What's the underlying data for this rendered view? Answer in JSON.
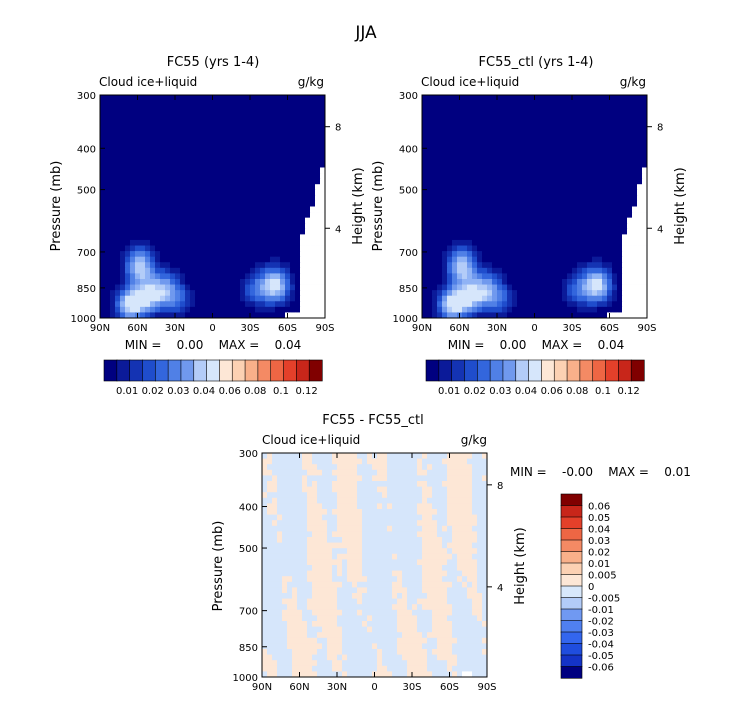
{
  "figure": {
    "title": "JJA"
  },
  "colors": {
    "abs_palette": [
      "#000080",
      "#0b1a99",
      "#1433b3",
      "#1f4dcc",
      "#3366dd",
      "#5080e6",
      "#7099ee",
      "#90b3f5",
      "#b3ccf8",
      "#d6e6fb",
      "#fde7d6",
      "#fcd1b3",
      "#f9b08a",
      "#f48a64",
      "#ee6644",
      "#e4402a",
      "#c8261a",
      "#a3140f",
      "#800000"
    ],
    "diff_palette": [
      "#000080",
      "#0a1ea6",
      "#1433c7",
      "#1f4dde",
      "#3366ee",
      "#5080f0",
      "#7099f2",
      "#90b3f5",
      "#b3ccf8",
      "#d8e8fb",
      "#fde7d6",
      "#fcd1b3",
      "#f9b08a",
      "#f48a64",
      "#ee6644",
      "#e4402a",
      "#c8261a",
      "#800000"
    ],
    "missing": "#ffffff"
  },
  "chart_data": [
    {
      "type": "heatmap",
      "title": "FC55 (yrs 1-4)",
      "left_label": "Cloud ice+liquid",
      "right_label": "g/kg",
      "ylabel": "Pressure (mb)",
      "y2label": "Height (km)",
      "x_ticks": [
        "90N",
        "60N",
        "30N",
        "0",
        "30S",
        "60S",
        "90S"
      ],
      "y_ticks": [
        "300",
        "400",
        "500",
        "700",
        "850",
        "1000"
      ],
      "y2_ticks": [
        "8",
        "4"
      ],
      "ylim": [
        1000,
        300
      ],
      "xlim": [
        90,
        -90
      ],
      "stats": "MIN =    0.00    MAX =    0.04",
      "colorbar_labels": [
        "0.01",
        "0.02",
        "0.03",
        "0.04",
        "0.06",
        "0.08",
        "0.1",
        "0.12"
      ],
      "features": [
        {
          "lat": 58,
          "p": 760,
          "value": 0.032
        },
        {
          "lat": 65,
          "p": 930,
          "value": 0.04
        },
        {
          "lat": 50,
          "p": 890,
          "value": 0.03
        },
        {
          "lat": 38,
          "p": 850,
          "value": 0.02
        },
        {
          "lat": 28,
          "p": 910,
          "value": 0.015
        },
        {
          "lat": -50,
          "p": 840,
          "value": 0.036
        },
        {
          "lat": -35,
          "p": 860,
          "value": 0.015
        }
      ],
      "style": "abs"
    },
    {
      "type": "heatmap",
      "title": "FC55_ctl (yrs 1-4)",
      "left_label": "Cloud ice+liquid",
      "right_label": "g/kg",
      "ylabel": "Pressure (mb)",
      "y2label": "Height (km)",
      "x_ticks": [
        "90N",
        "60N",
        "30N",
        "0",
        "30S",
        "60S",
        "90S"
      ],
      "y_ticks": [
        "300",
        "400",
        "500",
        "700",
        "850",
        "1000"
      ],
      "y2_ticks": [
        "8",
        "4"
      ],
      "ylim": [
        1000,
        300
      ],
      "xlim": [
        90,
        -90
      ],
      "stats": "MIN =    0.00    MAX =    0.04",
      "colorbar_labels": [
        "0.01",
        "0.02",
        "0.03",
        "0.04",
        "0.06",
        "0.08",
        "0.1",
        "0.12"
      ],
      "features": [
        {
          "lat": 58,
          "p": 760,
          "value": 0.032
        },
        {
          "lat": 65,
          "p": 930,
          "value": 0.04
        },
        {
          "lat": 50,
          "p": 890,
          "value": 0.03
        },
        {
          "lat": 38,
          "p": 850,
          "value": 0.02
        },
        {
          "lat": 28,
          "p": 910,
          "value": 0.015
        },
        {
          "lat": -50,
          "p": 840,
          "value": 0.036
        },
        {
          "lat": -35,
          "p": 860,
          "value": 0.015
        }
      ],
      "style": "abs"
    },
    {
      "type": "heatmap",
      "title": "FC55 - FC55_ctl",
      "left_label": "Cloud ice+liquid",
      "right_label": "g/kg",
      "ylabel": "Pressure (mb)",
      "y2label": "Height (km)",
      "x_ticks": [
        "90N",
        "60N",
        "30N",
        "0",
        "30S",
        "60S",
        "90S"
      ],
      "y_ticks": [
        "300",
        "400",
        "500",
        "700",
        "850",
        "1000"
      ],
      "y2_ticks": [
        "8",
        "4"
      ],
      "ylim": [
        1000,
        300
      ],
      "xlim": [
        90,
        -90
      ],
      "stats": "MIN =    -0.00    MAX =    0.01",
      "colorbar_labels": [
        "0.06",
        "0.05",
        "0.04",
        "0.03",
        "0.02",
        "0.01",
        "0.005",
        "0",
        "-0.005",
        "-0.01",
        "-0.02",
        "-0.03",
        "-0.04",
        "-0.05",
        "-0.06"
      ],
      "value_range": [
        -0.005,
        0.005
      ],
      "style": "diff"
    }
  ]
}
